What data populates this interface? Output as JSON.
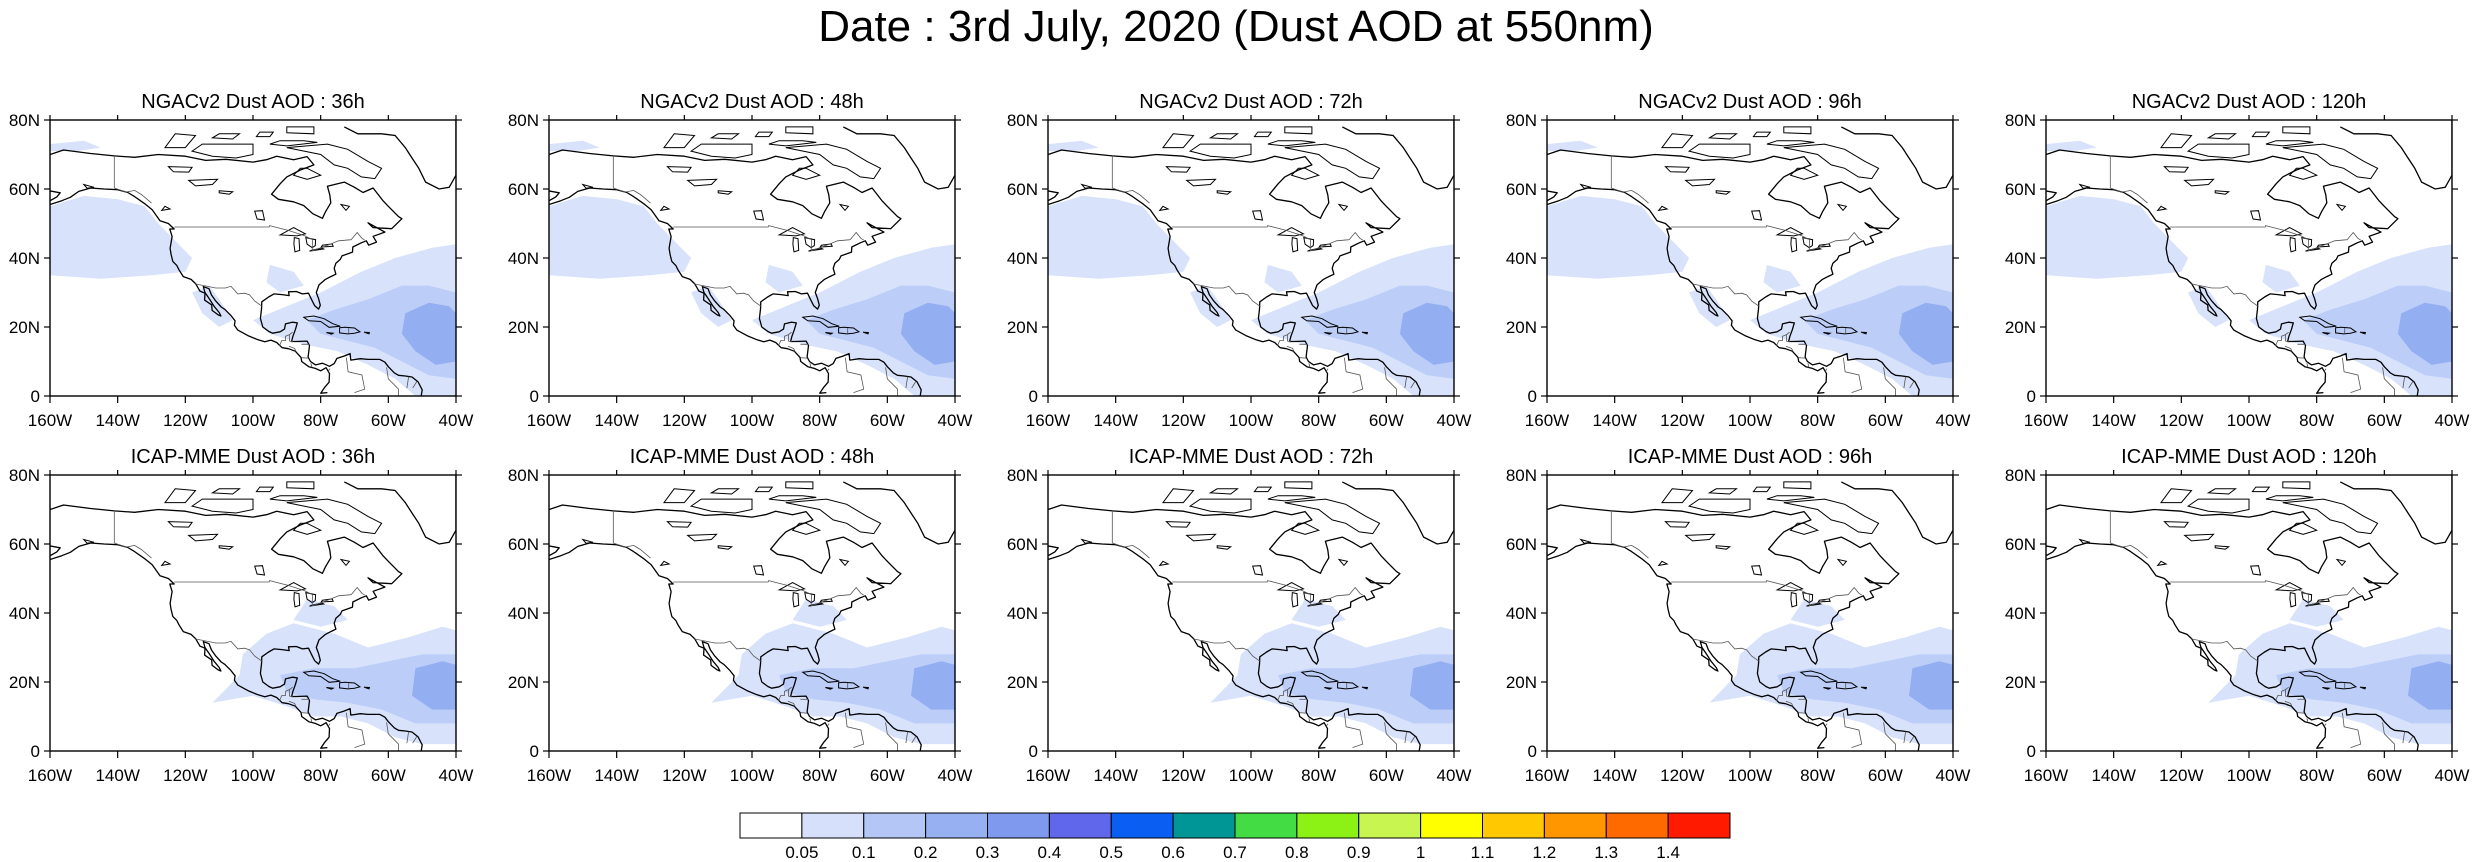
{
  "title": "Date : 3rd July, 2020 (Dust AOD at 550nm)",
  "panels": [
    {
      "title": "NGACv2 Dust AOD : 36h",
      "model": "NGACv2",
      "lead": "36h"
    },
    {
      "title": "NGACv2 Dust AOD : 48h",
      "model": "NGACv2",
      "lead": "48h"
    },
    {
      "title": "NGACv2 Dust AOD : 72h",
      "model": "NGACv2",
      "lead": "72h"
    },
    {
      "title": "NGACv2 Dust AOD : 96h",
      "model": "NGACv2",
      "lead": "96h"
    },
    {
      "title": "NGACv2 Dust AOD : 120h",
      "model": "NGACv2",
      "lead": "120h"
    },
    {
      "title": "ICAP-MME Dust AOD : 36h",
      "model": "ICAP-MME",
      "lead": "36h"
    },
    {
      "title": "ICAP-MME Dust AOD : 48h",
      "model": "ICAP-MME",
      "lead": "48h"
    },
    {
      "title": "ICAP-MME Dust AOD : 72h",
      "model": "ICAP-MME",
      "lead": "72h"
    },
    {
      "title": "ICAP-MME Dust AOD : 96h",
      "model": "ICAP-MME",
      "lead": "96h"
    },
    {
      "title": "ICAP-MME Dust AOD : 120h",
      "model": "ICAP-MME",
      "lead": "120h"
    }
  ],
  "map": {
    "lon_range": [
      -160,
      -40
    ],
    "lat_range": [
      0,
      80
    ],
    "x_ticks": [
      "160W",
      "140W",
      "120W",
      "100W",
      "80W",
      "60W",
      "40W"
    ],
    "y_ticks": [
      "80N",
      "60N",
      "40N",
      "20N",
      "0"
    ]
  },
  "colorbar": {
    "labels": [
      "0.05",
      "0.1",
      "0.2",
      "0.3",
      "0.4",
      "0.5",
      "0.6",
      "0.7",
      "0.8",
      "0.9",
      "1",
      "1.1",
      "1.2",
      "1.3",
      "1.4"
    ],
    "colors": [
      "#ffffff",
      "#d6e0fa",
      "#b4c6f6",
      "#96b0f2",
      "#7f99ee",
      "#6067ea",
      "#0a5ff2",
      "#009696",
      "#44dc44",
      "#8cf216",
      "#c8f550",
      "#ffff00",
      "#ffc800",
      "#ff9600",
      "#ff6a00",
      "#ff1a00"
    ]
  },
  "shading": {
    "light": "#d8e2fb",
    "medium": "#bccdf8",
    "dark": "#94aef2"
  }
}
